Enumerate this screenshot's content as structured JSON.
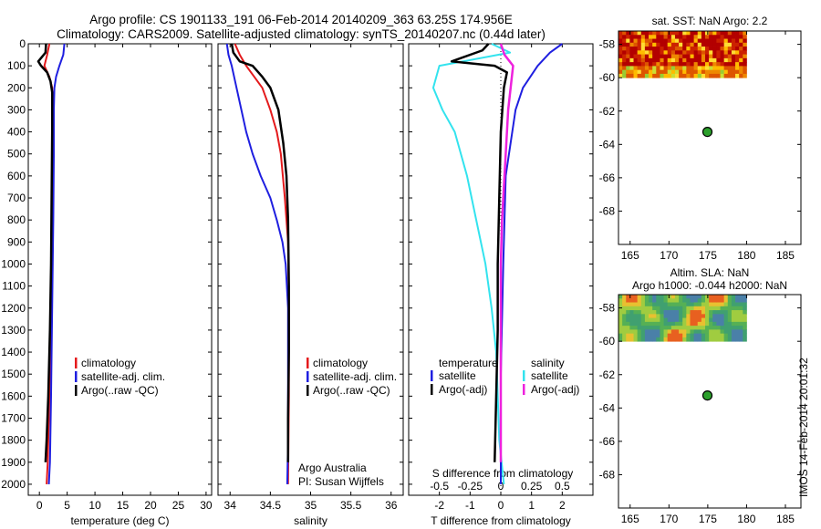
{
  "header": {
    "line1": "Argo profile: CS 1901133_191 06-Feb-2014 20140209_363 63.25S 174.956E",
    "line2": "Climatology: CARS2009. Satellite-adjusted climatology: synTS_20140207.nc (0.44d later)"
  },
  "footer": {
    "stamp": "IMOS 14-Feb-2014 20:01:32"
  },
  "colors": {
    "climatology": "#e41a1c",
    "satellite": "#1f1fe0",
    "argo": "#000000",
    "temp_sat_diff": "#33e3ee",
    "sal_diff_magenta": "#ee22dd",
    "float_marker": "#2ca02c"
  },
  "chart_data": [
    {
      "id": "temperature",
      "type": "line",
      "xlabel": "temperature (deg C)",
      "ylabel": "",
      "xlim": [
        -2,
        31
      ],
      "ylim": [
        2050,
        0
      ],
      "xticks": [
        "0",
        "5",
        "10",
        "15",
        "20",
        "25",
        "30"
      ],
      "xtick_values": [
        0,
        5,
        10,
        15,
        20,
        25,
        30
      ],
      "yticks": [
        "0",
        "100",
        "200",
        "300",
        "400",
        "500",
        "600",
        "700",
        "800",
        "900",
        "1000",
        "1100",
        "1200",
        "1300",
        "1400",
        "1500",
        "1600",
        "1700",
        "1800",
        "1900",
        "2000"
      ],
      "ytick_values": [
        0,
        100,
        200,
        300,
        400,
        500,
        600,
        700,
        800,
        900,
        1000,
        1100,
        1200,
        1300,
        1400,
        1500,
        1600,
        1700,
        1800,
        1900,
        2000
      ],
      "legend": [
        "climatology",
        "satellite-adj. clim.",
        "Argo(..raw -QC)"
      ],
      "series": [
        {
          "name": "climatology",
          "points": [
            [
              1.8,
              0
            ],
            [
              1.4,
              50
            ],
            [
              0.9,
              100
            ],
            [
              1.8,
              150
            ],
            [
              2.3,
              200
            ],
            [
              2.4,
              300
            ],
            [
              2.4,
              500
            ],
            [
              2.3,
              800
            ],
            [
              2.1,
              1200
            ],
            [
              1.8,
              1600
            ],
            [
              1.5,
              1900
            ],
            [
              1.3,
              2000
            ]
          ]
        },
        {
          "name": "satellite-adj. clim.",
          "points": [
            [
              4.5,
              0
            ],
            [
              4.3,
              50
            ],
            [
              3.6,
              100
            ],
            [
              3.0,
              150
            ],
            [
              2.7,
              200
            ],
            [
              2.6,
              300
            ],
            [
              2.6,
              500
            ],
            [
              2.5,
              800
            ],
            [
              2.3,
              1200
            ],
            [
              2.1,
              1600
            ],
            [
              1.9,
              1900
            ],
            [
              1.7,
              2000
            ]
          ]
        },
        {
          "name": "Argo(..raw -QC)",
          "points": [
            [
              1.2,
              0
            ],
            [
              1.1,
              40
            ],
            [
              -0.2,
              80
            ],
            [
              0.3,
              100
            ],
            [
              1.4,
              130
            ],
            [
              2.0,
              170
            ],
            [
              2.3,
              220
            ],
            [
              2.3,
              400
            ],
            [
              2.2,
              700
            ],
            [
              2.1,
              1000
            ],
            [
              1.9,
              1300
            ],
            [
              1.6,
              1600
            ],
            [
              1.3,
              1800
            ],
            [
              1.1,
              1900
            ]
          ]
        }
      ]
    },
    {
      "id": "salinity",
      "type": "line",
      "xlabel": "salinity",
      "ylabel": "",
      "xlim": [
        33.85,
        36.15
      ],
      "ylim": [
        2050,
        0
      ],
      "xticks": [
        "34",
        "34.5",
        "35",
        "35.5",
        "36"
      ],
      "xtick_values": [
        34,
        34.5,
        35,
        35.5,
        36
      ],
      "legend": [
        "climatology",
        "satellite-adj. clim.",
        "Argo(..raw -QC)"
      ],
      "annotations": [
        "Argo Australia",
        "PI: Susan Wijffels"
      ],
      "series": [
        {
          "name": "climatology",
          "points": [
            [
              34.06,
              0
            ],
            [
              34.12,
              50
            ],
            [
              34.2,
              100
            ],
            [
              34.3,
              150
            ],
            [
              34.4,
              200
            ],
            [
              34.5,
              300
            ],
            [
              34.58,
              400
            ],
            [
              34.63,
              500
            ],
            [
              34.68,
              700
            ],
            [
              34.72,
              900
            ],
            [
              34.73,
              1200
            ],
            [
              34.73,
              1600
            ],
            [
              34.72,
              2000
            ]
          ]
        },
        {
          "name": "satellite-adj. clim.",
          "points": [
            [
              33.96,
              0
            ],
            [
              33.98,
              50
            ],
            [
              34.02,
              100
            ],
            [
              34.08,
              200
            ],
            [
              34.14,
              300
            ],
            [
              34.2,
              400
            ],
            [
              34.28,
              500
            ],
            [
              34.38,
              600
            ],
            [
              34.5,
              700
            ],
            [
              34.58,
              800
            ],
            [
              34.65,
              900
            ],
            [
              34.69,
              1000
            ],
            [
              34.72,
              1200
            ],
            [
              34.72,
              1500
            ],
            [
              34.72,
              1800
            ],
            [
              34.71,
              2000
            ]
          ]
        },
        {
          "name": "Argo(..raw -QC)",
          "points": [
            [
              34.02,
              0
            ],
            [
              34.04,
              40
            ],
            [
              34.12,
              80
            ],
            [
              34.28,
              100
            ],
            [
              34.4,
              150
            ],
            [
              34.5,
              200
            ],
            [
              34.6,
              300
            ],
            [
              34.66,
              450
            ],
            [
              34.7,
              600
            ],
            [
              34.72,
              800
            ],
            [
              34.73,
              1100
            ],
            [
              34.73,
              1400
            ],
            [
              34.72,
              1700
            ],
            [
              34.72,
              1900
            ]
          ]
        }
      ]
    },
    {
      "id": "differences",
      "type": "line",
      "xlabel": "T difference from climatology",
      "xlabel2": "S difference from climatology",
      "xlim": [
        -3,
        3
      ],
      "ylim": [
        2050,
        0
      ],
      "xticks": [
        "-2",
        "-1",
        "0",
        "1",
        "2"
      ],
      "xtick_values": [
        -2,
        -1,
        0,
        1,
        2
      ],
      "xticks2": [
        "-0.5",
        "-0.25",
        "0",
        "0.25",
        "0.5"
      ],
      "xtick2_values": [
        -0.5,
        -0.25,
        0,
        0.25,
        0.5
      ],
      "legend_headers": [
        "temperature",
        "salinity"
      ],
      "legend_rows": [
        "satellite",
        "Argo(-adj)"
      ],
      "series": [
        {
          "name": "temperature satellite",
          "points": [
            [
              -0.3,
              0
            ],
            [
              0.3,
              40
            ],
            [
              -2.0,
              100
            ],
            [
              -2.2,
              200
            ],
            [
              -1.9,
              300
            ],
            [
              -1.5,
              400
            ],
            [
              -1.3,
              500
            ],
            [
              -1.1,
              600
            ],
            [
              -0.8,
              800
            ],
            [
              -0.5,
              1000
            ],
            [
              -0.3,
              1200
            ],
            [
              -0.15,
              1400
            ],
            [
              -0.1,
              1600
            ],
            [
              -0.05,
              1800
            ],
            [
              0.1,
              2000
            ]
          ]
        },
        {
          "name": "temperature Argo(-adj)",
          "points": [
            [
              -0.4,
              0
            ],
            [
              -0.6,
              30
            ],
            [
              -1.6,
              80
            ],
            [
              -0.2,
              100
            ],
            [
              0.2,
              130
            ],
            [
              0.1,
              200
            ],
            [
              0.0,
              400
            ],
            [
              -0.05,
              700
            ],
            [
              -0.1,
              1000
            ],
            [
              -0.1,
              1300
            ],
            [
              -0.15,
              1600
            ],
            [
              -0.2,
              1900
            ]
          ]
        },
        {
          "name": "salinity satellite",
          "points": [
            [
              0.5,
              0
            ],
            [
              0.4,
              40
            ],
            [
              0.3,
              100
            ],
            [
              0.18,
              200
            ],
            [
              0.12,
              300
            ],
            [
              0.08,
              450
            ],
            [
              0.04,
              600
            ],
            [
              0.03,
              800
            ],
            [
              0.02,
              1000
            ],
            [
              0.0,
              1500
            ],
            [
              0.0,
              1800
            ],
            [
              0.0,
              2000
            ]
          ]
        },
        {
          "name": "salinity Argo(-adj)",
          "points": [
            [
              0.0,
              0
            ],
            [
              0.03,
              50
            ],
            [
              0.1,
              100
            ],
            [
              0.08,
              200
            ],
            [
              0.06,
              300
            ],
            [
              0.05,
              400
            ],
            [
              0.03,
              600
            ],
            [
              0.01,
              800
            ],
            [
              0.0,
              1000
            ],
            [
              0.0,
              1500
            ],
            [
              0.0,
              1900
            ]
          ]
        }
      ]
    },
    {
      "id": "sst_map",
      "type": "heatmap",
      "title": "sat. SST: NaN Argo: 2.2",
      "xlim": [
        163.5,
        187
      ],
      "ylim": [
        -70,
        -57.2
      ],
      "xticks": [
        "165",
        "170",
        "175",
        "180",
        "185"
      ],
      "xtick_values": [
        165,
        170,
        175,
        180,
        185
      ],
      "yticks": [
        "-58",
        "-60",
        "-62",
        "-64",
        "-66",
        "-68"
      ],
      "ytick_values": [
        -58,
        -60,
        -62,
        -64,
        -66,
        -68
      ],
      "data_extent": {
        "lon": [
          163.5,
          180
        ],
        "lat": [
          -60,
          -57.2
        ]
      },
      "float_position": {
        "lon": 174.956,
        "lat": -63.25
      }
    },
    {
      "id": "sla_map",
      "type": "heatmap",
      "title": "Altim. SLA: NaN",
      "subtitle": "Argo h1000: -0.044 h2000: NaN",
      "xlim": [
        163.5,
        187
      ],
      "ylim": [
        -70,
        -57.2
      ],
      "xticks": [
        "165",
        "170",
        "175",
        "180",
        "185"
      ],
      "xtick_values": [
        165,
        170,
        175,
        180,
        185
      ],
      "yticks": [
        "-58",
        "-60",
        "-62",
        "-64",
        "-66",
        "-68"
      ],
      "ytick_values": [
        -58,
        -60,
        -62,
        -64,
        -66,
        -68
      ],
      "data_extent": {
        "lon": [
          163.5,
          180
        ],
        "lat": [
          -60,
          -57.2
        ]
      },
      "float_position": {
        "lon": 174.956,
        "lat": -63.25
      }
    }
  ]
}
